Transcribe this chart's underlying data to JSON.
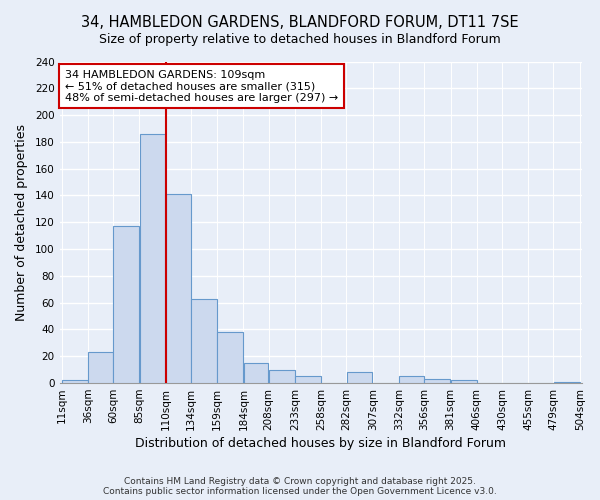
{
  "title1": "34, HAMBLEDON GARDENS, BLANDFORD FORUM, DT11 7SE",
  "title2": "Size of property relative to detached houses in Blandford Forum",
  "xlabel": "Distribution of detached houses by size in Blandford Forum",
  "ylabel": "Number of detached properties",
  "bin_edges": [
    11,
    36,
    60,
    85,
    110,
    134,
    159,
    184,
    208,
    233,
    258,
    282,
    307,
    332,
    356,
    381,
    406,
    430,
    455,
    479,
    504
  ],
  "bar_heights": [
    2,
    23,
    117,
    186,
    141,
    63,
    38,
    15,
    10,
    5,
    0,
    8,
    0,
    5,
    3,
    2,
    0,
    0,
    0,
    1
  ],
  "bar_color": "#ccd9ee",
  "bar_edge_color": "#6699cc",
  "vline_x": 110,
  "vline_color": "#cc0000",
  "annotation_title": "34 HAMBLEDON GARDENS: 109sqm",
  "annotation_line1": "← 51% of detached houses are smaller (315)",
  "annotation_line2": "48% of semi-detached houses are larger (297) →",
  "annotation_box_facecolor": "#ffffff",
  "annotation_box_edgecolor": "#cc0000",
  "ylim": [
    0,
    240
  ],
  "yticks": [
    0,
    20,
    40,
    60,
    80,
    100,
    120,
    140,
    160,
    180,
    200,
    220,
    240
  ],
  "xtick_labels": [
    "11sqm",
    "36sqm",
    "60sqm",
    "85sqm",
    "110sqm",
    "134sqm",
    "159sqm",
    "184sqm",
    "208sqm",
    "233sqm",
    "258sqm",
    "282sqm",
    "307sqm",
    "332sqm",
    "356sqm",
    "381sqm",
    "406sqm",
    "430sqm",
    "455sqm",
    "479sqm",
    "504sqm"
  ],
  "footnote1": "Contains HM Land Registry data © Crown copyright and database right 2025.",
  "footnote2": "Contains public sector information licensed under the Open Government Licence v3.0.",
  "bg_color": "#e8eef8",
  "grid_color": "#ffffff",
  "title_fontsize": 10.5,
  "subtitle_fontsize": 9,
  "tick_fontsize": 7.5,
  "label_fontsize": 9
}
